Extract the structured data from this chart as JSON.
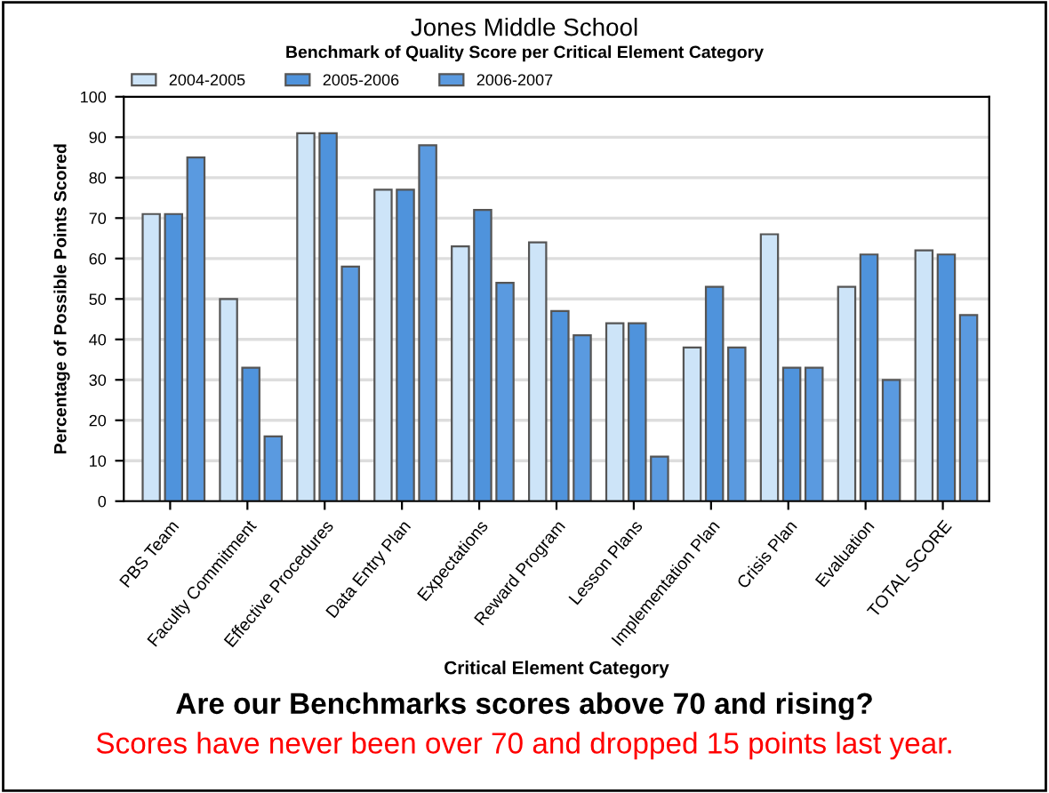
{
  "chart_data": {
    "type": "bar",
    "title": "Jones Middle School",
    "subtitle": "Benchmark of Quality Score per Critical Element Category",
    "xlabel": "Critical Element Category",
    "ylabel": "Percentage of Possible Points Scored",
    "categories": [
      "PBS Team",
      "Faculty Commitment",
      "Effective Procedures",
      "Data Entry Plan",
      "Expectations",
      "Reward Program",
      "Lesson Plans",
      "Implementation Plan",
      "Crisis Plan",
      "Evaluation",
      "TOTAL SCORE"
    ],
    "series": [
      {
        "name": "2004-2005",
        "color": "#cde4f8",
        "values": [
          71,
          50,
          91,
          77,
          63,
          64,
          44,
          38,
          66,
          53,
          62
        ]
      },
      {
        "name": "2005-2006",
        "color": "#4f93dc",
        "values": [
          71,
          33,
          91,
          77,
          72,
          47,
          44,
          53,
          33,
          61,
          61
        ]
      },
      {
        "name": "2006-2007",
        "color": "#5a9ae0",
        "values": [
          85,
          16,
          58,
          88,
          54,
          41,
          11,
          38,
          33,
          30,
          46
        ]
      }
    ],
    "ylim": [
      0,
      100
    ],
    "yticks": [
      0,
      10,
      20,
      30,
      40,
      50,
      60,
      70,
      80,
      90,
      100
    ],
    "grid": "y",
    "legend": "top left",
    "annotations": [
      "Are our Benchmarks scores above 70 and rising?",
      "Scores have never been over 70 and dropped 15 points last year."
    ]
  }
}
